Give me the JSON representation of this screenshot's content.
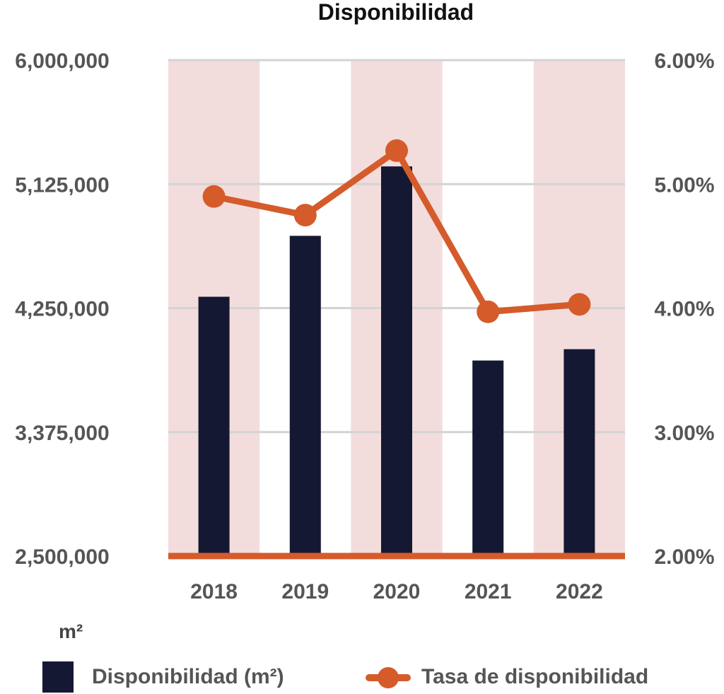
{
  "chart_data": {
    "type": "bar",
    "title": "Disponibilidad",
    "unit_label": "m²",
    "categories": [
      "2018",
      "2019",
      "2020",
      "2021",
      "2022"
    ],
    "series": [
      {
        "name": "Disponibilidad (m²)",
        "type": "bar",
        "axis": "left",
        "color": "#151833",
        "values": [
          4330000,
          4760000,
          5250000,
          3880000,
          3960000
        ]
      },
      {
        "name": "Tasa de disponibilidad",
        "type": "line",
        "axis": "right",
        "color": "#D55B2B",
        "values": [
          4.9,
          4.75,
          5.27,
          3.97,
          4.03
        ]
      }
    ],
    "y_left": {
      "range": [
        2500000,
        6000000
      ],
      "ticks": [
        2500000,
        3375000,
        4250000,
        5125000,
        6000000
      ],
      "tick_labels": [
        "2,500,000",
        "3,375,000",
        "4,250,000",
        "5,125,000",
        "6,000,000"
      ]
    },
    "y_right": {
      "range": [
        2.0,
        6.0
      ],
      "ticks": [
        2.0,
        3.0,
        4.0,
        5.0,
        6.0
      ],
      "tick_labels": [
        "2.00%",
        "3.00%",
        "4.00%",
        "5.00%",
        "6.00%"
      ]
    },
    "grid": true,
    "legend_position": "bottom",
    "colors": {
      "band": "#F2DDDC",
      "grid": "#D3D3D3",
      "baseline": "#D55B2B"
    }
  }
}
